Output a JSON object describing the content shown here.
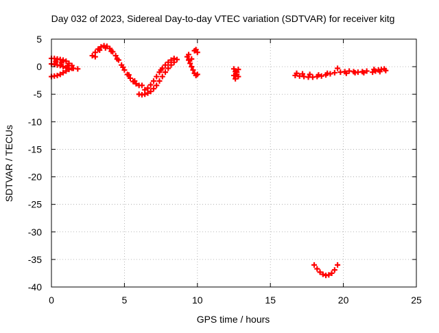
{
  "chart_data": {
    "type": "scatter",
    "title": "Day 032 of 2023, Sidereal Day-to-day VTEC variation (SDTVAR) for receiver kitg",
    "xlabel": "GPS time / hours",
    "ylabel": "SDTVAR / TECUs",
    "xlim": [
      0,
      25
    ],
    "ylim": [
      -40,
      5
    ],
    "xticks": [
      0,
      5,
      10,
      15,
      20,
      25
    ],
    "xtick_labels": [
      "0",
      "5",
      "10",
      "15",
      "20",
      "25"
    ],
    "yticks": [
      5,
      0,
      -5,
      -10,
      -15,
      -20,
      -25,
      -30,
      -35,
      -40
    ],
    "ytick_labels": [
      "5",
      "0",
      "-5",
      "-10",
      "-15",
      "-20",
      "-25",
      "-30",
      "-35",
      "-40"
    ],
    "grid": true,
    "marker": "plus",
    "marker_color": "#ff0000",
    "legend": "none",
    "series": [
      {
        "points": [
          [
            0.0,
            1.5
          ],
          [
            0.2,
            1.5
          ],
          [
            0.4,
            1.4
          ],
          [
            0.6,
            1.3
          ],
          [
            0.8,
            1.2
          ],
          [
            1.0,
            1.0
          ],
          [
            1.2,
            0.6
          ],
          [
            1.4,
            0.2
          ],
          [
            0.0,
            0.5
          ],
          [
            0.2,
            0.4
          ],
          [
            0.4,
            0.3
          ],
          [
            0.6,
            0.2
          ],
          [
            0.8,
            0.0
          ],
          [
            1.0,
            -0.2
          ],
          [
            1.2,
            -0.3
          ],
          [
            1.4,
            -0.3
          ],
          [
            0.0,
            -1.8
          ],
          [
            0.2,
            -1.7
          ],
          [
            0.4,
            -1.6
          ],
          [
            0.6,
            -1.4
          ],
          [
            0.8,
            -1.1
          ],
          [
            1.0,
            -0.8
          ],
          [
            1.2,
            -0.5
          ],
          [
            1.5,
            -0.3
          ],
          [
            1.8,
            -0.4
          ],
          [
            0.3,
            0.9
          ],
          [
            0.7,
            0.7
          ],
          [
            1.1,
            0.2
          ]
        ]
      },
      {
        "points": [
          [
            2.8,
            2.0
          ],
          [
            3.0,
            2.6
          ],
          [
            3.2,
            3.2
          ],
          [
            3.4,
            3.6
          ],
          [
            3.6,
            3.8
          ],
          [
            3.8,
            3.7
          ],
          [
            4.0,
            3.3
          ],
          [
            4.2,
            2.7
          ],
          [
            4.4,
            2.0
          ],
          [
            4.6,
            1.2
          ],
          [
            4.8,
            0.3
          ],
          [
            5.0,
            -0.6
          ],
          [
            5.2,
            -1.4
          ],
          [
            5.4,
            -2.1
          ],
          [
            5.6,
            -2.7
          ],
          [
            5.8,
            -3.1
          ],
          [
            6.0,
            -3.4
          ],
          [
            6.2,
            -3.4
          ],
          [
            3.0,
            1.8
          ],
          [
            3.3,
            3.0
          ],
          [
            3.7,
            3.4
          ],
          [
            4.1,
            2.8
          ],
          [
            4.5,
            1.4
          ],
          [
            4.9,
            -0.1
          ],
          [
            5.3,
            -1.5
          ],
          [
            5.7,
            -2.6
          ]
        ]
      },
      {
        "points": [
          [
            6.0,
            -5.0
          ],
          [
            6.2,
            -5.1
          ],
          [
            6.4,
            -5.0
          ],
          [
            6.6,
            -4.8
          ],
          [
            6.8,
            -4.5
          ],
          [
            7.0,
            -4.0
          ],
          [
            7.2,
            -3.4
          ],
          [
            7.4,
            -2.6
          ],
          [
            7.6,
            -1.8
          ],
          [
            7.8,
            -1.0
          ],
          [
            8.0,
            -0.3
          ],
          [
            8.2,
            0.3
          ],
          [
            8.4,
            0.8
          ],
          [
            8.6,
            1.3
          ],
          [
            6.4,
            -4.2
          ],
          [
            6.6,
            -3.9
          ],
          [
            6.8,
            -3.3
          ],
          [
            7.0,
            -2.6
          ],
          [
            7.2,
            -1.8
          ],
          [
            7.4,
            -1.0
          ],
          [
            7.6,
            -0.3
          ],
          [
            7.8,
            0.3
          ],
          [
            8.0,
            0.8
          ],
          [
            8.2,
            1.2
          ],
          [
            7.5,
            -0.6
          ],
          [
            8.4,
            1.5
          ]
        ]
      },
      {
        "points": [
          [
            9.3,
            1.8
          ],
          [
            9.4,
            1.2
          ],
          [
            9.5,
            0.6
          ],
          [
            9.6,
            0.0
          ],
          [
            9.7,
            -0.6
          ],
          [
            9.8,
            -1.2
          ],
          [
            9.9,
            -1.6
          ],
          [
            10.0,
            -1.4
          ],
          [
            9.8,
            2.9
          ],
          [
            9.9,
            3.1
          ],
          [
            10.0,
            2.6
          ],
          [
            9.6,
            1.4
          ],
          [
            9.4,
            2.2
          ]
        ]
      },
      {
        "points": [
          [
            12.5,
            -0.4
          ],
          [
            12.6,
            -0.9
          ],
          [
            12.7,
            -1.4
          ],
          [
            12.8,
            -1.8
          ],
          [
            12.6,
            -2.2
          ],
          [
            12.7,
            -1.0
          ],
          [
            12.8,
            -0.5
          ],
          [
            12.5,
            -1.6
          ]
        ]
      },
      {
        "points": [
          [
            16.7,
            -1.6
          ],
          [
            17.0,
            -1.7
          ],
          [
            17.3,
            -1.8
          ],
          [
            17.6,
            -1.9
          ],
          [
            17.9,
            -1.9
          ],
          [
            18.2,
            -1.8
          ],
          [
            18.5,
            -1.7
          ],
          [
            18.8,
            -1.5
          ],
          [
            19.1,
            -1.3
          ],
          [
            19.4,
            -1.1
          ],
          [
            19.6,
            -0.3
          ],
          [
            16.8,
            -1.2
          ],
          [
            17.2,
            -1.3
          ],
          [
            17.7,
            -1.4
          ],
          [
            18.3,
            -1.5
          ],
          [
            18.9,
            -1.2
          ]
        ]
      },
      {
        "points": [
          [
            19.8,
            -1.0
          ],
          [
            20.1,
            -0.9
          ],
          [
            20.4,
            -0.8
          ],
          [
            20.7,
            -0.9
          ],
          [
            21.0,
            -1.0
          ],
          [
            21.3,
            -0.9
          ],
          [
            21.6,
            -0.8
          ],
          [
            20.2,
            -1.2
          ],
          [
            20.8,
            -1.1
          ],
          [
            21.4,
            -1.1
          ]
        ]
      },
      {
        "points": [
          [
            22.0,
            -1.0
          ],
          [
            22.2,
            -0.8
          ],
          [
            22.4,
            -0.6
          ],
          [
            22.6,
            -0.5
          ],
          [
            22.8,
            -0.4
          ],
          [
            22.1,
            -0.5
          ],
          [
            22.5,
            -0.9
          ],
          [
            22.9,
            -0.7
          ]
        ]
      },
      {
        "points": [
          [
            18.0,
            -36.0
          ],
          [
            18.2,
            -36.7
          ],
          [
            18.4,
            -37.3
          ],
          [
            18.6,
            -37.7
          ],
          [
            18.8,
            -37.9
          ],
          [
            19.0,
            -37.8
          ],
          [
            19.2,
            -37.5
          ],
          [
            19.4,
            -36.9
          ],
          [
            19.6,
            -36.0
          ]
        ]
      }
    ]
  }
}
